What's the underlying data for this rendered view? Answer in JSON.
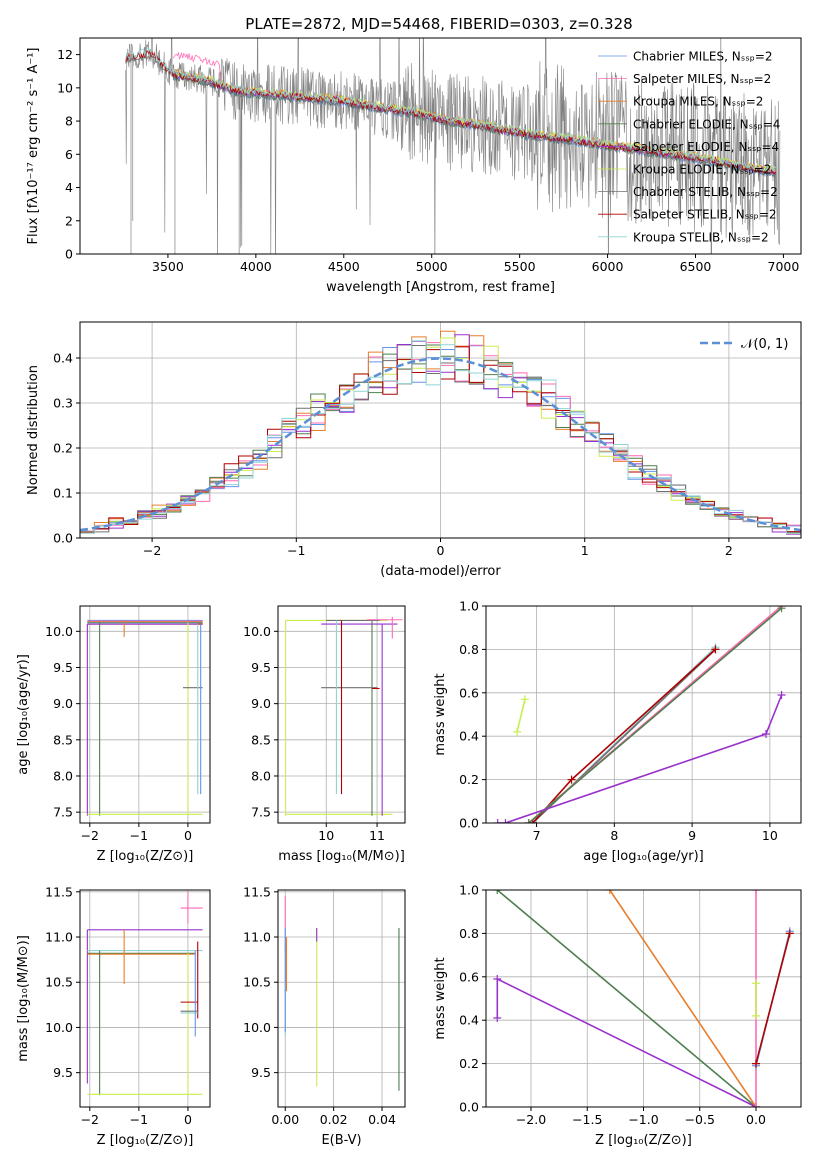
{
  "figure_title": "PLATE=2872, MJD=54468, FIBERID=0303, z=0.328",
  "colors": {
    "chabrier_miles": "#6495ed",
    "salpeter_miles": "#ff69b4",
    "kroupa_miles": "#e87e2c",
    "chabrier_elodie": "#4f7f4f",
    "salpeter_elodie": "#9932cc",
    "kroupa_elodie": "#c8ee50",
    "chabrier_stelib": "#707070",
    "salpeter_stelib": "#b00000",
    "kroupa_stelib": "#8fd3d3",
    "data": "#808080",
    "gaussian": "#5b8fd6"
  },
  "chart_data": [
    {
      "id": "spectrum",
      "type": "line",
      "title": "PLATE=2872, MJD=54468, FIBERID=0303, z=0.328",
      "xlabel": "wavelength [Angstrom, rest frame]",
      "ylabel": "Flux [fλ10⁻¹⁷ erg cm⁻² s⁻¹ A⁻¹]",
      "xlim": [
        3000,
        7100
      ],
      "ylim": [
        0,
        13
      ],
      "xticks": [
        "3500",
        "4000",
        "4500",
        "5000",
        "5500",
        "6000",
        "6500",
        "7000"
      ],
      "yticks": [
        "0",
        "2",
        "4",
        "6",
        "8",
        "10",
        "12"
      ],
      "legend_position": "right",
      "legend": [
        "Chabrier MILES, Nₛₛₚ=2",
        "Salpeter MILES, Nₛₛₚ=2",
        "Kroupa MILES, Nₛₛₚ=2",
        "Chabrier ELODIE, Nₛₛₚ=4",
        "Salpeter ELODIE, Nₛₛₚ=4",
        "Kroupa ELODIE, Nₛₛₚ=2",
        "Chabrier STELIB, Nₛₛₚ=2",
        "Salpeter STELIB, Nₛₛₚ=2",
        "Kroupa STELIB, Nₛₛₚ=2"
      ],
      "model_trend": {
        "x": [
          3260,
          3400,
          3530,
          3700,
          3900,
          4100,
          4300,
          4500,
          4700,
          4900,
          5100,
          5300,
          5500,
          5700,
          5900,
          6100,
          6300,
          6500,
          6700,
          6900
        ],
        "y": [
          11.8,
          12.1,
          10.8,
          10.5,
          9.8,
          9.6,
          9.4,
          9.2,
          8.8,
          8.5,
          8.0,
          7.7,
          7.3,
          7.0,
          6.7,
          6.4,
          6.1,
          5.8,
          5.4,
          5.0
        ]
      }
    },
    {
      "id": "residuals",
      "type": "line",
      "xlabel": "(data-model)/error",
      "ylabel": "Normed distribution",
      "xlim": [
        -2.5,
        2.5
      ],
      "ylim": [
        0,
        0.48
      ],
      "xticks": [
        "−2",
        "−1",
        "0",
        "1",
        "2"
      ],
      "yticks": [
        "0.0",
        "0.1",
        "0.2",
        "0.3",
        "0.4"
      ],
      "legend": [
        "𝒩(0, 1)"
      ],
      "legend_position": "top-right",
      "hist_bin_width": 0.1
    },
    {
      "id": "age_Z",
      "type": "scatter",
      "xlabel": "Z [log₁₀(Z/Z⊙)]",
      "ylabel": "age  [log₁₀(age/yr)]",
      "xlim": [
        -2.2,
        0.45
      ],
      "ylim": [
        7.35,
        10.35
      ],
      "xticks": [
        "−2",
        "−1",
        "0"
      ],
      "yticks": [
        "7.5",
        "8.0",
        "8.5",
        "9.0",
        "9.5",
        "10.0"
      ]
    },
    {
      "id": "age_mass",
      "type": "scatter",
      "xlabel": "mass [log₁₀(M/M⊙)]",
      "xlim": [
        9.05,
        11.55
      ],
      "ylim": [
        7.35,
        10.35
      ],
      "xticks": [
        "10",
        "11"
      ],
      "yticks": [
        "7.5",
        "8.0",
        "8.5",
        "9.0",
        "9.5",
        "10.0"
      ]
    },
    {
      "id": "massweight_age",
      "type": "line",
      "xlabel": "age  [log₁₀(age/yr)]",
      "ylabel": "mass weight",
      "xlim": [
        6.35,
        10.4
      ],
      "ylim": [
        0,
        1
      ],
      "xticks": [
        "7",
        "8",
        "9",
        "10"
      ],
      "yticks": [
        "0.0",
        "0.2",
        "0.4",
        "0.6",
        "0.8",
        "1.0"
      ],
      "series": [
        {
          "color_key": "chabrier_miles",
          "x": [
            6.95,
            9.3
          ],
          "y": [
            0.0,
            0.8
          ]
        },
        {
          "color_key": "kroupa_stelib",
          "x": [
            6.95,
            9.3
          ],
          "y": [
            0.0,
            0.81
          ]
        },
        {
          "color_key": "chabrier_stelib",
          "x": [
            6.95,
            9.3
          ],
          "y": [
            0.0,
            0.8
          ]
        },
        {
          "color_key": "salpeter_stelib",
          "x": [
            6.95,
            7.45,
            9.3
          ],
          "y": [
            0.0,
            0.2,
            0.8
          ]
        },
        {
          "color_key": "kroupa_miles",
          "x": [
            6.9,
            10.15
          ],
          "y": [
            0.0,
            1.0
          ]
        },
        {
          "color_key": "salpeter_miles",
          "x": [
            6.9,
            10.15
          ],
          "y": [
            0.0,
            1.0
          ]
        },
        {
          "color_key": "chabrier_elodie",
          "x": [
            6.9,
            10.15
          ],
          "y": [
            0.0,
            0.99
          ]
        },
        {
          "color_key": "salpeter_elodie",
          "x": [
            6.5,
            6.6,
            9.95,
            10.15
          ],
          "y": [
            0.0,
            0.0,
            0.41,
            0.59
          ]
        },
        {
          "color_key": "kroupa_elodie",
          "x": [
            6.75,
            6.85
          ],
          "y": [
            0.42,
            0.57
          ]
        }
      ]
    },
    {
      "id": "mass_Z",
      "type": "scatter",
      "xlabel": "Z [log₁₀(Z/Z⊙)]",
      "ylabel": "mass [log₁₀(M/M⊙)]",
      "xlim": [
        -2.2,
        0.45
      ],
      "ylim": [
        9.12,
        11.52
      ],
      "xticks": [
        "−2",
        "−1",
        "0"
      ],
      "yticks": [
        "9.5",
        "10.0",
        "10.5",
        "11.0",
        "11.5"
      ]
    },
    {
      "id": "mass_EBV",
      "type": "scatter",
      "xlabel": "E(B-V)",
      "xlim": [
        -0.003,
        0.0495
      ],
      "ylim": [
        9.12,
        11.52
      ],
      "xticks": [
        "0.00",
        "0.02",
        "0.04"
      ],
      "yticks": [
        "9.5",
        "10.0",
        "10.5",
        "11.0",
        "11.5"
      ]
    },
    {
      "id": "massweight_Z",
      "type": "line",
      "xlabel": "Z [log₁₀(Z/Z⊙)]",
      "ylabel": "mass weight",
      "xlim": [
        -2.4,
        0.4
      ],
      "ylim": [
        0,
        1
      ],
      "xticks": [
        "−2.0",
        "−1.5",
        "−1.0",
        "−0.5",
        "0.0"
      ],
      "yticks": [
        "0.0",
        "0.2",
        "0.4",
        "0.6",
        "0.8",
        "1.0"
      ],
      "series": [
        {
          "color_key": "chabrier_elodie",
          "x": [
            -2.3,
            0.0
          ],
          "y": [
            1.0,
            0.0
          ]
        },
        {
          "color_key": "kroupa_miles",
          "x": [
            -1.3,
            0.0
          ],
          "y": [
            1.0,
            0.0
          ]
        },
        {
          "color_key": "salpeter_elodie",
          "x": [
            -2.3,
            -2.3,
            0.0
          ],
          "y": [
            0.41,
            0.59,
            0.0
          ]
        },
        {
          "color_key": "salpeter_miles",
          "x": [
            0.0,
            0.0
          ],
          "y": [
            0.0,
            1.0
          ]
        },
        {
          "color_key": "kroupa_elodie",
          "x": [
            0.0,
            0.0
          ],
          "y": [
            0.42,
            0.57
          ]
        },
        {
          "color_key": "chabrier_miles",
          "x": [
            0.0,
            0.3
          ],
          "y": [
            0.19,
            0.81
          ]
        },
        {
          "color_key": "kroupa_stelib",
          "x": [
            0.0,
            0.3
          ],
          "y": [
            0.2,
            0.8
          ]
        },
        {
          "color_key": "salpeter_stelib",
          "x": [
            0.0,
            0.3
          ],
          "y": [
            0.2,
            0.8
          ]
        }
      ]
    }
  ]
}
